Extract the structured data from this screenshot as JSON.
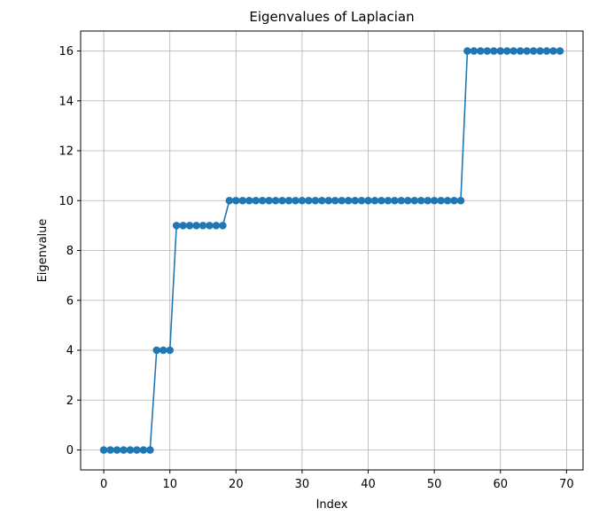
{
  "chart_data": {
    "type": "line",
    "title": "Eigenvalues of Laplacian",
    "xlabel": "Index",
    "ylabel": "Eigenvalue",
    "xlim": [
      -3.5,
      72.5
    ],
    "ylim": [
      -0.8,
      16.8
    ],
    "xticks": [
      0,
      10,
      20,
      30,
      40,
      50,
      60,
      70
    ],
    "yticks": [
      0,
      2,
      4,
      6,
      8,
      10,
      12,
      14,
      16
    ],
    "grid": true,
    "marker": "circle",
    "series": [
      {
        "color": "#1f77b4",
        "x": [
          0,
          1,
          2,
          3,
          4,
          5,
          6,
          7,
          8,
          9,
          10,
          11,
          12,
          13,
          14,
          15,
          16,
          17,
          18,
          19,
          20,
          21,
          22,
          23,
          24,
          25,
          26,
          27,
          28,
          29,
          30,
          31,
          32,
          33,
          34,
          35,
          36,
          37,
          38,
          39,
          40,
          41,
          42,
          43,
          44,
          45,
          46,
          47,
          48,
          49,
          50,
          51,
          52,
          53,
          54,
          55,
          56,
          57,
          58,
          59,
          60,
          61,
          62,
          63,
          64,
          65,
          66,
          67,
          68,
          69
        ],
        "y": [
          0,
          0,
          0,
          0,
          0,
          0,
          0,
          0,
          4,
          4,
          4,
          9,
          9,
          9,
          9,
          9,
          9,
          9,
          9,
          10,
          10,
          10,
          10,
          10,
          10,
          10,
          10,
          10,
          10,
          10,
          10,
          10,
          10,
          10,
          10,
          10,
          10,
          10,
          10,
          10,
          10,
          10,
          10,
          10,
          10,
          10,
          10,
          10,
          10,
          10,
          10,
          10,
          10,
          10,
          10,
          16,
          16,
          16,
          16,
          16,
          16,
          16,
          16,
          16,
          16,
          16,
          16,
          16,
          16,
          16
        ]
      }
    ]
  }
}
